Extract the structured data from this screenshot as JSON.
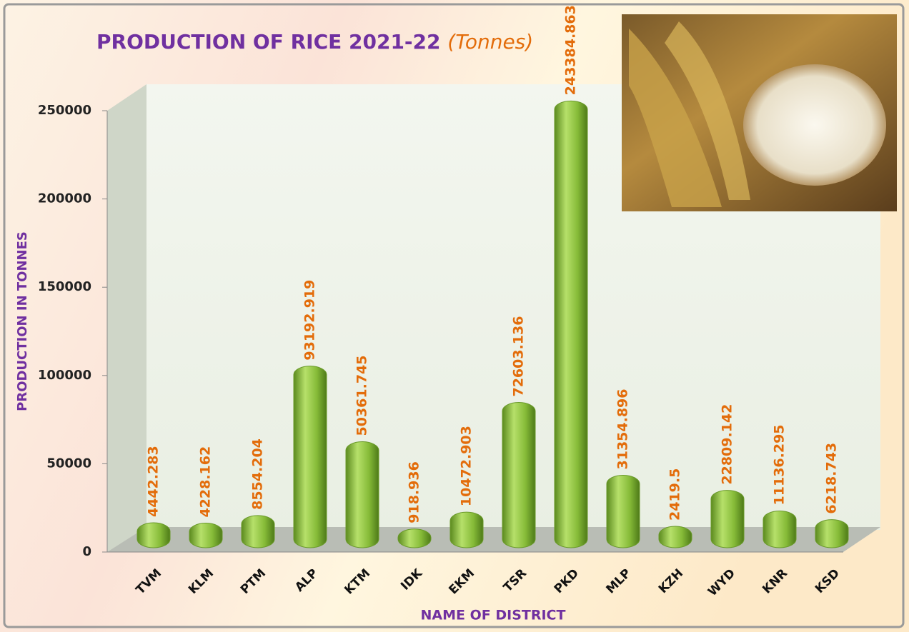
{
  "chart_data": {
    "type": "bar",
    "title": "PRODUCTION OF RICE 2021-22",
    "subtitle": "(Tonnes)",
    "y_label": "PRODUCTION IN TONNES",
    "x_label": "NAME OF DISTRICT",
    "categories": [
      "TVM",
      "KLM",
      "PTM",
      "ALP",
      "KTM",
      "IDK",
      "EKM",
      "TSR",
      "PKD",
      "MLP",
      "KZH",
      "WYD",
      "KNR",
      "KSD"
    ],
    "values": [
      4442.283,
      4228.162,
      8554.204,
      93192.919,
      50361.745,
      918.936,
      10472.903,
      72603.136,
      243384.863,
      31354.896,
      2419.5,
      22809.142,
      11136.295,
      6218.743
    ],
    "color": "#8dc63f",
    "label_color": "#e36c0a",
    "ylim": [
      0,
      250000
    ],
    "yticks": [
      0,
      50000,
      100000,
      150000,
      200000,
      250000
    ]
  }
}
